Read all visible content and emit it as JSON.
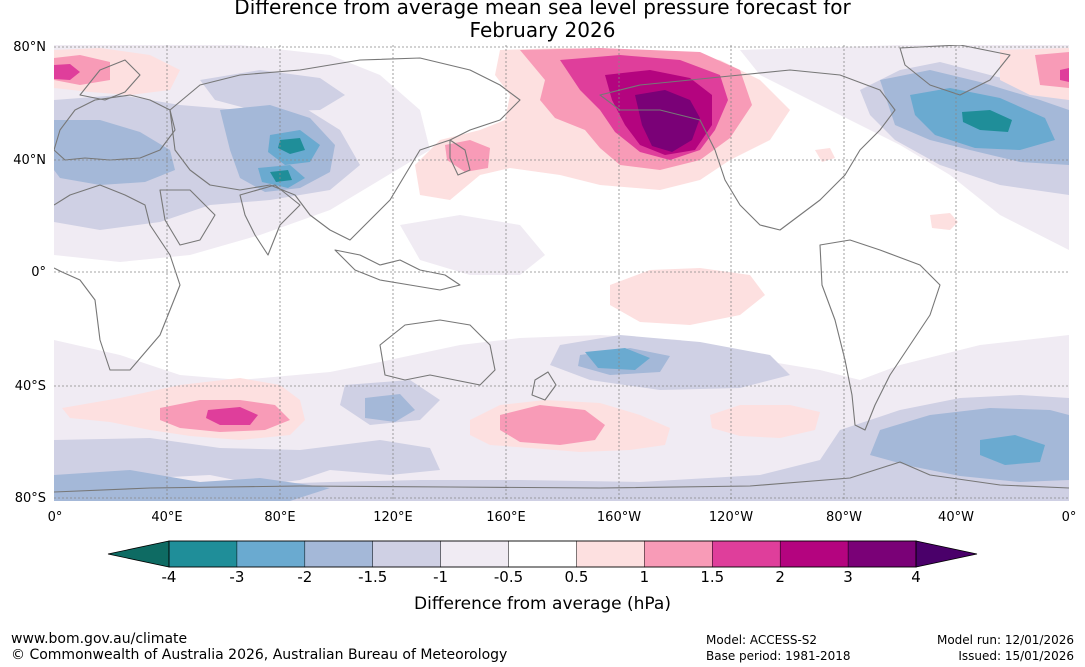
{
  "title": {
    "line1": "Difference from average mean sea level pressure forecast for",
    "line2": "February 2026"
  },
  "map": {
    "lat_labels": [
      "80°N",
      "40°N",
      "0°",
      "40°S",
      "80°S"
    ],
    "lon_labels": [
      "0°",
      "40°E",
      "80°E",
      "120°E",
      "160°E",
      "160°W",
      "120°W",
      "80°W",
      "40°W",
      "0°"
    ],
    "anomalies": [
      {
        "name": "north-pacific-high",
        "level": "3",
        "lon": -145,
        "lat": 53
      },
      {
        "name": "north-atlantic-low",
        "level": "-3",
        "lon": -30,
        "lat": 50
      },
      {
        "name": "central-asia-low",
        "level": "-2",
        "lon": 82,
        "lat": 38
      },
      {
        "name": "southern-indian-high",
        "level": "2",
        "lon": 65,
        "lat": -51
      },
      {
        "name": "southern-pacific-high",
        "level": "1.5",
        "lon": 175,
        "lat": -55
      },
      {
        "name": "south-atlantic-low",
        "level": "-2",
        "lon": -15,
        "lat": -65
      }
    ]
  },
  "colorbar": {
    "labels": [
      "-4",
      "-3",
      "-2",
      "-1.5",
      "-1",
      "-0.5",
      "0.5",
      "1",
      "1.5",
      "2",
      "3",
      "4"
    ],
    "colors": [
      "#1f8e99",
      "#6aaad0",
      "#a4b8d8",
      "#cfd0e4",
      "#f0ebf3",
      "#ffffff",
      "#fde0e0",
      "#f89bb7",
      "#df3e9b",
      "#b4047f",
      "#7a0177"
    ],
    "under_color": "#0e6b63",
    "over_color": "#4a006a",
    "title": "Difference from average (hPa)"
  },
  "footer": {
    "url": "www.bom.gov.au/climate",
    "copyright": "© Commonwealth of Australia 2026, Australian Bureau of Meteorology",
    "model": "Model: ACCESS-S2",
    "base_period": "Base period: 1981-2018",
    "model_run": "Model run: 12/01/2026",
    "issued": "Issued: 15/01/2026"
  }
}
